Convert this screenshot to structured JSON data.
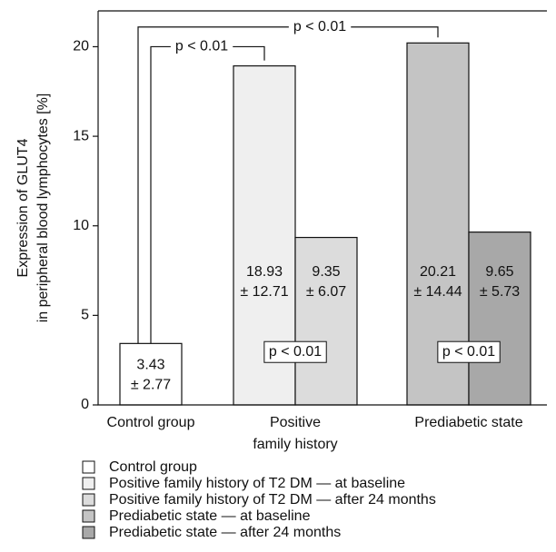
{
  "chart_data": {
    "type": "bar",
    "ylabel": [
      "Expression of GLUT4",
      "in peripheral blood lymphocytes [%]"
    ],
    "categories": [
      [
        "Control group"
      ],
      [
        "Positive",
        "family history"
      ],
      [
        "Prediabetic state"
      ]
    ],
    "series": [
      {
        "name": "Control group",
        "color": "#ffffff",
        "values": [
          3.43,
          null,
          null
        ],
        "error_labels": [
          "± 2.77",
          null,
          null
        ]
      },
      {
        "name": "Positive family history of T2 DM — at baseline",
        "color": "#efefef",
        "values": [
          null,
          18.93,
          null
        ],
        "error_labels": [
          null,
          "± 12.71",
          null
        ]
      },
      {
        "name": "Positive family history of T2 DM — after 24 months",
        "color": "#dcdcdc",
        "values": [
          null,
          9.35,
          null
        ],
        "error_labels": [
          null,
          "± 6.07",
          null
        ]
      },
      {
        "name": "Prediabetic state — at baseline",
        "color": "#c4c4c4",
        "values": [
          null,
          null,
          20.21
        ],
        "error_labels": [
          null,
          null,
          "± 14.44"
        ]
      },
      {
        "name": "Prediabetic state — after 24 months",
        "color": "#a8a8a8",
        "values": [
          null,
          null,
          9.65
        ],
        "error_labels": [
          null,
          null,
          "± 5.73"
        ]
      }
    ],
    "annotations": [
      "p < 0.01",
      "p < 0.01",
      "p < 0.01",
      "p < 0.01"
    ],
    "ylim": [
      0,
      22
    ],
    "yticks": [
      0,
      5,
      10,
      15,
      20
    ]
  }
}
